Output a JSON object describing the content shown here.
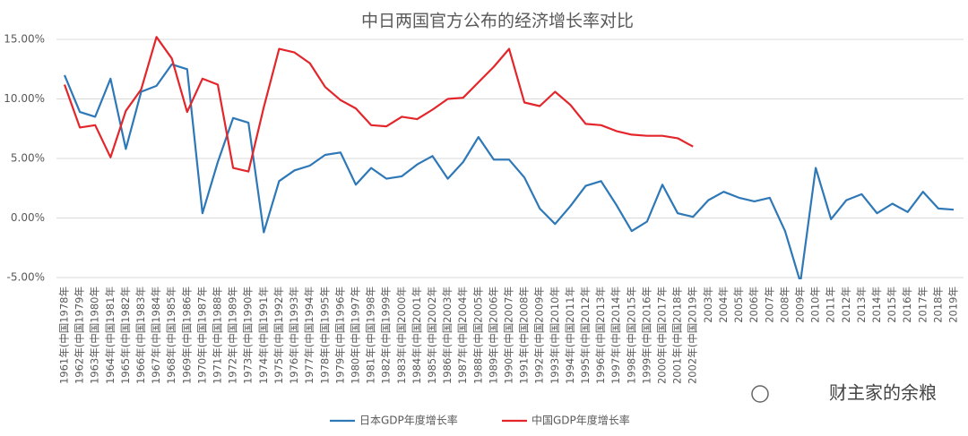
{
  "chart_data": {
    "type": "line",
    "title": "中日两国官方公布的经济增长率对比",
    "categories": [
      "1961年(中国1978年",
      "1962年(中国1979年",
      "1963年(中国1980年",
      "1964年(中国1981年",
      "1965年(中国1982年",
      "1966年(中国1983年",
      "1967年(中国1984年",
      "1968年(中国1985年",
      "1969年(中国1986年",
      "1970年(中国1987年",
      "1971年(中国1988年",
      "1972年(中国1989年",
      "1973年(中国1990年",
      "1974年(中国1991年",
      "1975年(中国1992年",
      "1976年(中国1993年",
      "1977年(中国1994年",
      "1978年(中国1995年",
      "1979年(中国1996年",
      "1980年(中国1997年",
      "1981年(中国1998年",
      "1982年(中国1999年",
      "1983年(中国2000年",
      "1984年(中国2001年",
      "1985年(中国2002年",
      "1986年(中国2003年",
      "1987年(中国2004年",
      "1988年(中国2005年",
      "1989年(中国2006年",
      "1990年(中国2007年",
      "1991年(中国2008年",
      "1992年(中国2009年",
      "1993年(中国2010年",
      "1994年(中国2011年",
      "1995年(中国2012年",
      "1996年(中国2013年",
      "1997年(中国2014年",
      "1998年(中国2015年",
      "1999年(中国2016年",
      "2000年(中国2017年",
      "2001年(中国2018年",
      "2002年(中国2019年",
      "2003年",
      "2004年",
      "2005年",
      "2006年",
      "2007年",
      "2008年",
      "2009年",
      "2010年",
      "2011年",
      "2012年",
      "2013年",
      "2014年",
      "2015年",
      "2016年",
      "2017年",
      "2018年",
      "2019年"
    ],
    "series": [
      {
        "name": "日本GDP年度增长率",
        "color": "#2e78b7",
        "values": [
          12.0,
          8.9,
          8.5,
          11.7,
          5.8,
          10.6,
          11.1,
          12.9,
          12.5,
          0.4,
          4.7,
          8.4,
          8.0,
          -1.2,
          3.1,
          4.0,
          4.4,
          5.3,
          5.5,
          2.8,
          4.2,
          3.3,
          3.5,
          4.5,
          5.2,
          3.3,
          4.7,
          6.8,
          4.9,
          4.9,
          3.4,
          0.8,
          -0.5,
          1.0,
          2.7,
          3.1,
          1.1,
          -1.1,
          -0.3,
          2.8,
          0.4,
          0.1,
          1.5,
          2.2,
          1.7,
          1.4,
          1.7,
          -1.1,
          -5.4,
          4.2,
          -0.1,
          1.5,
          2.0,
          0.4,
          1.2,
          0.5,
          2.2,
          0.8,
          0.7
        ]
      },
      {
        "name": "中国GDP年度增长率",
        "color": "#e3262b",
        "values": [
          11.2,
          7.6,
          7.8,
          5.1,
          9.0,
          10.8,
          15.2,
          13.4,
          8.9,
          11.7,
          11.2,
          4.2,
          3.9,
          9.3,
          14.2,
          13.9,
          13.0,
          11.0,
          9.9,
          9.2,
          7.8,
          7.7,
          8.5,
          8.3,
          9.1,
          10.0,
          10.1,
          11.4,
          12.7,
          14.2,
          9.7,
          9.4,
          10.6,
          9.5,
          7.9,
          7.8,
          7.3,
          7.0,
          6.9,
          6.9,
          6.7,
          6.0,
          null,
          null,
          null,
          null,
          null,
          null,
          null,
          null,
          null,
          null,
          null,
          null,
          null,
          null,
          null,
          null,
          null
        ]
      }
    ],
    "ylim": [
      -5,
      15
    ],
    "yticks": [
      {
        "value": -5,
        "label": "-5.00%"
      },
      {
        "value": 0,
        "label": "0.00%"
      },
      {
        "value": 5,
        "label": "5.00%"
      },
      {
        "value": 10,
        "label": "10.00%"
      },
      {
        "value": 15,
        "label": "15.00%"
      }
    ],
    "grid": true,
    "legend": "bottom",
    "watermark": "财主家的余粮"
  }
}
